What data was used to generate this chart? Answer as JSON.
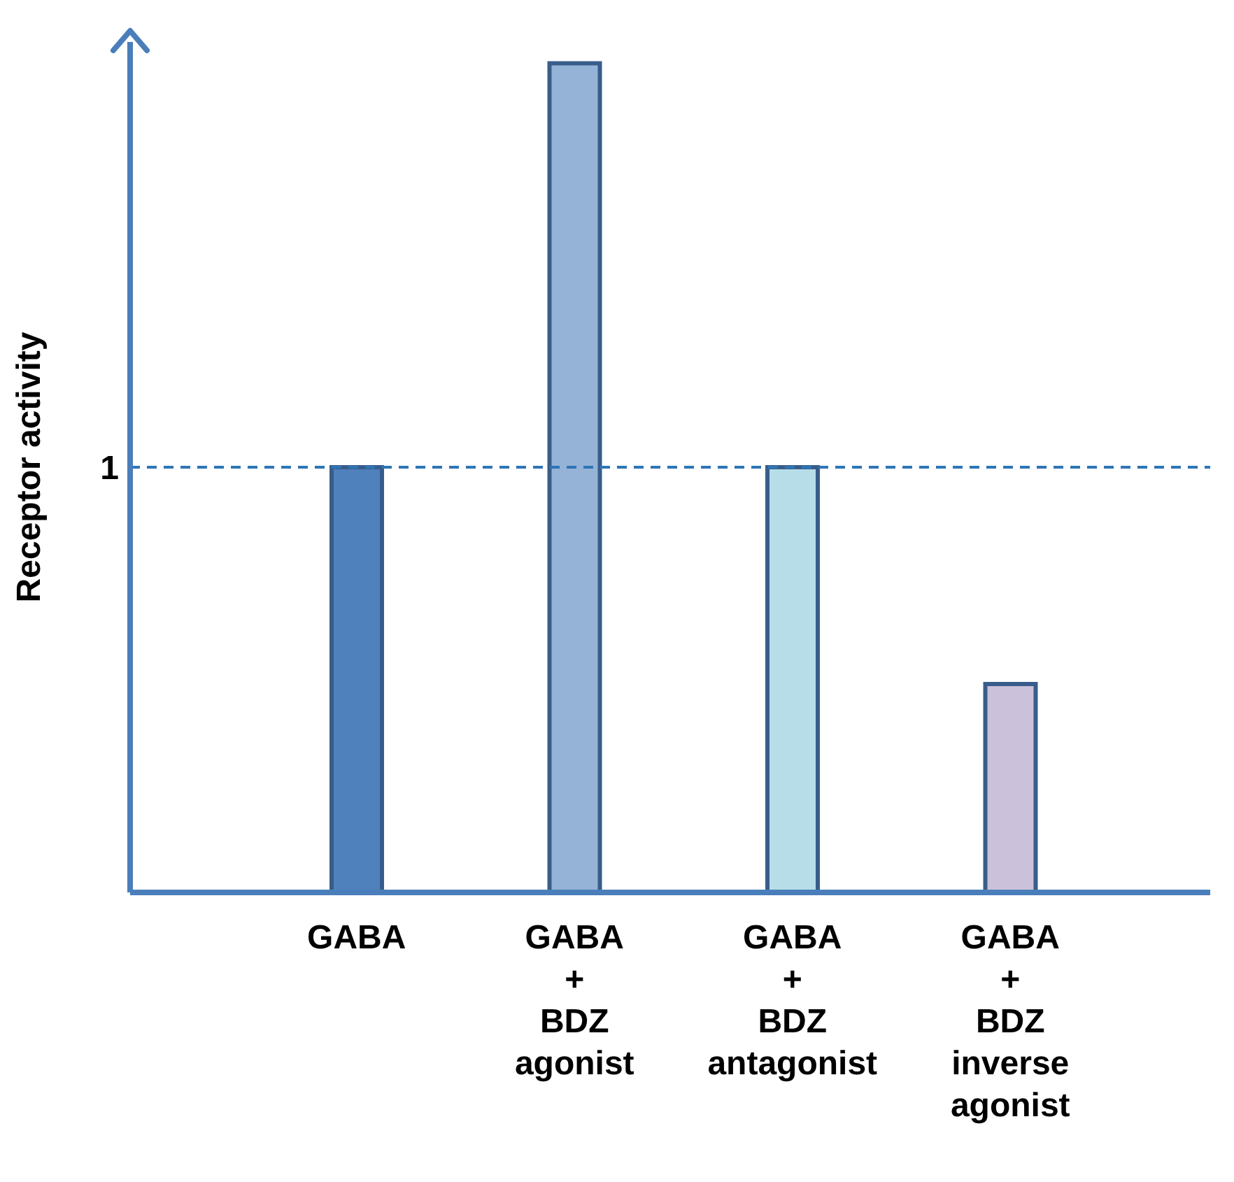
{
  "chart_data": {
    "type": "bar",
    "ylabel": "Receptor activity",
    "categories": [
      "GABA",
      "GABA + BDZ agonist",
      "GABA + BDZ antagonist",
      "GABA + BDZ inverse agonist"
    ],
    "values": [
      1,
      1.95,
      1,
      0.49
    ],
    "colors": [
      "#4f81bd",
      "#95b3d7",
      "#b7dee8",
      "#ccc1da"
    ],
    "ylim": [
      0,
      2
    ],
    "yticks": [
      1
    ],
    "grid": false,
    "legend": false,
    "ref_lines": [
      {
        "axis": "y",
        "value": 1,
        "color": "#2e75b6",
        "line_style": "dashed"
      }
    ]
  }
}
